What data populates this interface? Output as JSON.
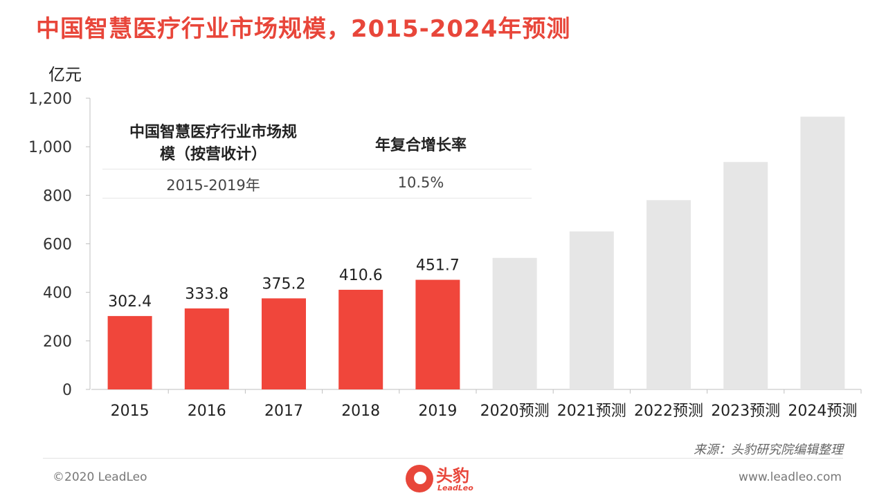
{
  "header": {
    "title": "中国智慧医疗行业市场规模，2015-2024年预测",
    "unit": "亿元"
  },
  "info_table": {
    "col1_header": "中国智慧医疗行业市场规模（按营收计）",
    "col2_header": "年复合增长率",
    "col1_value": "2015-2019年",
    "col2_value": "10.5%"
  },
  "chart_data": {
    "type": "bar",
    "title": "中国智慧医疗行业市场规模，2015-2024年预测",
    "ylabel": "亿元",
    "xlabel": "",
    "ylim": [
      0,
      1200
    ],
    "yticks": [
      0,
      200,
      400,
      600,
      800,
      1000,
      1200
    ],
    "ytick_labels": [
      "0",
      "200",
      "400",
      "600",
      "800",
      "1,000",
      "1,200"
    ],
    "categories": [
      "2015",
      "2016",
      "2017",
      "2018",
      "2019",
      "2020预测",
      "2021预测",
      "2022预测",
      "2023预测",
      "2024预测"
    ],
    "values": [
      302.4,
      333.8,
      375.2,
      410.6,
      451.7,
      542,
      651,
      780,
      937,
      1124
    ],
    "data_labels": [
      "302.4",
      "333.8",
      "375.2",
      "410.6",
      "451.7",
      "",
      "",
      "",
      "",
      ""
    ],
    "bar_colors": [
      "#f0463b",
      "#f0463b",
      "#f0463b",
      "#f0463b",
      "#f0463b",
      "#e6e6e6",
      "#e6e6e6",
      "#e6e6e6",
      "#e6e6e6",
      "#e6e6e6"
    ],
    "grid": false,
    "legend": "none"
  },
  "footer": {
    "source": "来源：头豹研究院编辑整理",
    "copyright": "©2020 LeadLeo",
    "website": "www.leadleo.com",
    "logo_cn": "头豹",
    "logo_en": "LeadLeo"
  }
}
